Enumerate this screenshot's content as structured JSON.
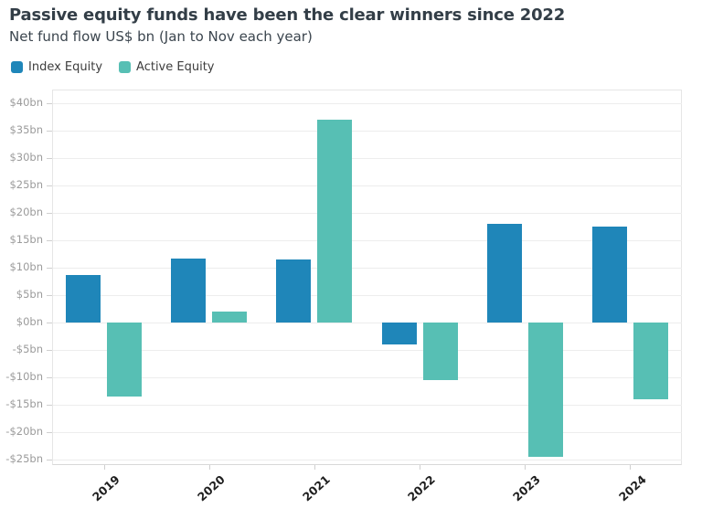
{
  "header": {
    "title": "Passive equity funds have been the clear winners since 2022",
    "subtitle": "Net fund flow US$ bn (Jan to Nov each year)"
  },
  "legend": {
    "items": [
      {
        "label": "Index Equity",
        "color": "#1f86b9"
      },
      {
        "label": "Active Equity",
        "color": "#57bfb4"
      }
    ]
  },
  "chart_data": {
    "type": "bar",
    "title": "Passive equity funds have been the clear winners since 2022",
    "subtitle": "Net fund flow US$ bn (Jan to Nov each year)",
    "categories": [
      "2019",
      "2020",
      "2021",
      "2022",
      "2023",
      "2024"
    ],
    "series": [
      {
        "name": "Index Equity",
        "color": "#1f86b9",
        "values": [
          8.7,
          11.7,
          11.5,
          -4,
          18,
          17.5
        ]
      },
      {
        "name": "Active Equity",
        "color": "#57bfb4",
        "values": [
          -13.5,
          2,
          37,
          -10.5,
          -24.5,
          -14
        ]
      }
    ],
    "ylabel": "Net fund flow US$ bn",
    "ylim": [
      -25,
      40
    ],
    "y_tick_step": 5,
    "y_tick_labels": [
      "$40bn",
      "$35bn",
      "$30bn",
      "$25bn",
      "$20bn",
      "$15bn",
      "$10bn",
      "$5bn",
      "$0bn",
      "-$5bn",
      "-$10bn",
      "-$15bn",
      "-$20bn",
      "-$25bn"
    ],
    "grid": true,
    "legend_position": "top-left"
  },
  "colors": {
    "index_equity": "#1f86b9",
    "active_equity": "#57bfb4",
    "gridline": "#ededed",
    "axis_tick": "#cfcfcf",
    "y_label_text": "#9b9b9b",
    "x_label_text": "#1f1f1f",
    "title_text": "#333e47"
  }
}
